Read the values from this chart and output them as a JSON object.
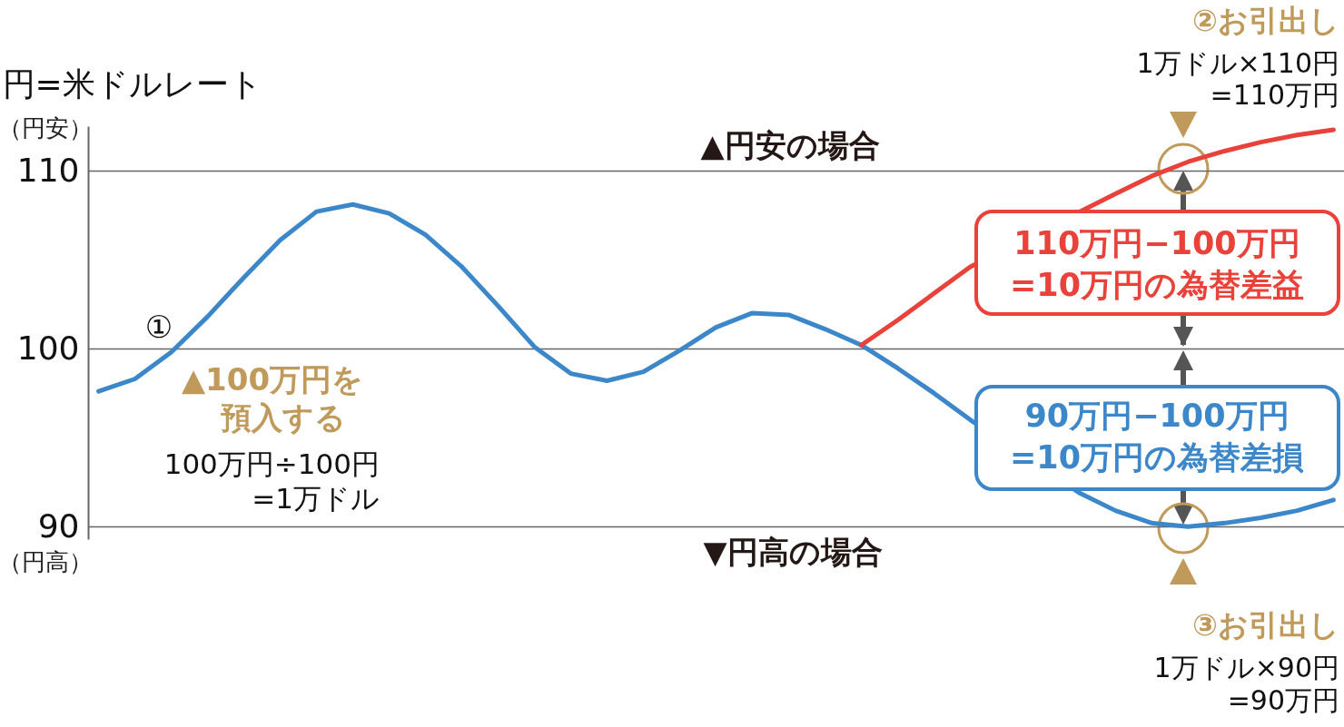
{
  "chart_data": {
    "type": "line",
    "ylabel": "円=米ドルレート",
    "categories": [
      null,
      null,
      null,
      null,
      null,
      null,
      null,
      null,
      null,
      null,
      null,
      null,
      null,
      null,
      null,
      null,
      null,
      null,
      null,
      null,
      null,
      null,
      null,
      null,
      null,
      null,
      null,
      null,
      null,
      null,
      null,
      null,
      null,
      null,
      null
    ],
    "series": [
      {
        "color": "#3b87c9",
        "values": [
          97.6,
          98.3,
          99.8,
          101.8,
          104.0,
          106.1,
          107.7,
          108.1,
          107.6,
          106.4,
          104.6,
          102.4,
          100.1,
          98.6,
          98.2,
          98.7,
          99.9,
          101.2,
          102.0,
          101.9,
          101.1,
          100.2,
          98.9,
          97.5,
          96.0,
          null,
          null,
          91.9,
          90.9,
          90.2,
          90.0,
          90.2,
          90.5,
          90.9,
          91.5
        ]
      },
      {
        "color": "#e8423b",
        "values": [
          null,
          null,
          null,
          null,
          null,
          null,
          null,
          null,
          null,
          null,
          null,
          null,
          null,
          null,
          null,
          null,
          null,
          null,
          null,
          null,
          null,
          100.2,
          101.6,
          103.1,
          104.6,
          null,
          null,
          null,
          108.7,
          109.7,
          110.5,
          111.1,
          111.6,
          112.0,
          112.3
        ]
      }
    ],
    "ylim": [
      89.3,
      112.5
    ],
    "yticks": [
      90,
      100,
      110
    ],
    "grid": "y",
    "tick_labels": "y",
    "marker": "none",
    "line_style": "solid",
    "annotations": [
      "（円安）",
      "（円高）",
      "①",
      "▲100万円を",
      "預入する",
      "100万円÷100円",
      "=1万ドル",
      "▲円安の場合",
      "▼円高の場合",
      "②お引出し",
      "1万ドル×110円",
      "=110万円",
      "③お引出し",
      "1万ドル×90円",
      "=90万円",
      "110万円−100万円",
      "=10万円の為替差益",
      "90万円−100万円",
      "=10万円の為替差損"
    ]
  }
}
